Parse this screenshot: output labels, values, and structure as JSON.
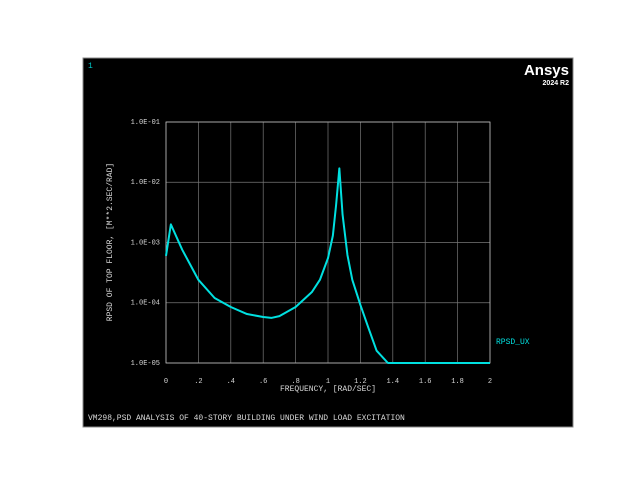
{
  "chart_data": {
    "type": "line",
    "title": "VM298,PSD ANALYSIS OF 40-STORY BUILDING UNDER WIND LOAD EXCITATION",
    "annotations": [
      "1",
      "Ansys",
      "2024 R2"
    ],
    "x_label": "FREQUENCY, [RAD/SEC]",
    "y_label": "RPSD OF TOP FLOOR, [M**2.SEC/RAD]",
    "x": [
      0,
      0.03,
      0.1,
      0.2,
      0.3,
      0.4,
      0.5,
      0.6,
      0.65,
      0.7,
      0.8,
      0.9,
      0.95,
      1.0,
      1.03,
      1.05,
      1.07,
      1.09,
      1.12,
      1.15,
      1.2,
      1.25,
      1.3,
      1.37,
      2
    ],
    "series": [
      {
        "name": "RPSD_UX",
        "color": "#00e0e0",
        "values": [
          0.0006,
          0.002,
          0.00076,
          0.00024,
          0.00012,
          8.5e-05,
          6.5e-05,
          5.8e-05,
          5.6e-05,
          6e-05,
          8.5e-05,
          0.00015,
          0.00024,
          0.00055,
          0.0013,
          0.0042,
          0.017,
          0.0029,
          0.00062,
          0.00024,
          9.2e-05,
          3.8e-05,
          1.6e-05,
          1e-05,
          1e-05
        ]
      }
    ],
    "xlim": [
      0,
      2
    ],
    "ylim": [
      1e-05,
      0.1
    ],
    "xticks": [
      0,
      {
        "value": 0.2,
        "label": ".2"
      },
      {
        "value": 0.4,
        "label": ".4"
      },
      {
        "value": 0.6,
        "label": ".6"
      },
      {
        "value": 0.8,
        "label": ".8"
      },
      1,
      1.2,
      1.4,
      1.6,
      1.8,
      2
    ],
    "yticks": [
      {
        "value": 1e-05,
        "label": "1.0E-05"
      },
      {
        "value": 0.0001,
        "label": "1.0E-04"
      },
      {
        "value": 0.001,
        "label": "1.0E-03"
      },
      {
        "value": 0.01,
        "label": "1.0E-02"
      },
      {
        "value": 0.1,
        "label": "1.0E-01"
      }
    ],
    "y_log": true,
    "grid": true,
    "legend_position": "right"
  }
}
